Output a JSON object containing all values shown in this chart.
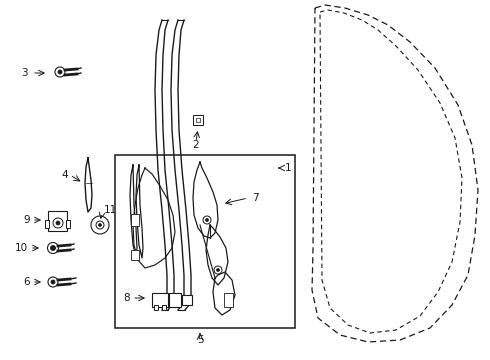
{
  "background_color": "#ffffff",
  "line_color": "#1a1a1a",
  "fig_width": 4.9,
  "fig_height": 3.6,
  "dpi": 100,
  "font_size": 7.5
}
